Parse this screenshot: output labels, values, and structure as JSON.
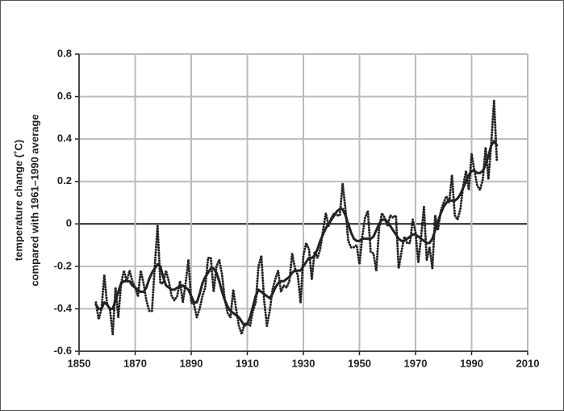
{
  "chart_data": {
    "type": "line",
    "ylabel": [
      "temperature change (˚C)",
      "compared with 1961–1990 average"
    ],
    "x": [
      1856,
      1857,
      1858,
      1859,
      1860,
      1861,
      1862,
      1863,
      1864,
      1865,
      1866,
      1867,
      1868,
      1869,
      1870,
      1871,
      1872,
      1873,
      1874,
      1875,
      1876,
      1877,
      1878,
      1879,
      1880,
      1881,
      1882,
      1883,
      1884,
      1885,
      1886,
      1887,
      1888,
      1889,
      1890,
      1891,
      1892,
      1893,
      1894,
      1895,
      1896,
      1897,
      1898,
      1899,
      1900,
      1901,
      1902,
      1903,
      1904,
      1905,
      1906,
      1907,
      1908,
      1909,
      1910,
      1911,
      1912,
      1913,
      1914,
      1915,
      1916,
      1917,
      1918,
      1919,
      1920,
      1921,
      1922,
      1923,
      1924,
      1925,
      1926,
      1927,
      1928,
      1929,
      1930,
      1931,
      1932,
      1933,
      1934,
      1935,
      1936,
      1937,
      1938,
      1939,
      1940,
      1941,
      1942,
      1943,
      1944,
      1945,
      1946,
      1947,
      1948,
      1949,
      1950,
      1951,
      1952,
      1953,
      1954,
      1955,
      1956,
      1957,
      1958,
      1959,
      1960,
      1961,
      1962,
      1963,
      1964,
      1965,
      1966,
      1967,
      1968,
      1969,
      1970,
      1971,
      1972,
      1973,
      1974,
      1975,
      1976,
      1977,
      1978,
      1979,
      1980,
      1981,
      1982,
      1983,
      1984,
      1985,
      1986,
      1987,
      1988,
      1989,
      1990,
      1991,
      1992,
      1993,
      1994,
      1995,
      1996,
      1997,
      1998,
      1999
    ],
    "series": [
      {
        "color": "#222222",
        "style": "dotted",
        "values": [
          -0.37,
          -0.45,
          -0.4,
          -0.24,
          -0.38,
          -0.4,
          -0.52,
          -0.3,
          -0.44,
          -0.28,
          -0.22,
          -0.27,
          -0.22,
          -0.27,
          -0.3,
          -0.34,
          -0.22,
          -0.28,
          -0.36,
          -0.41,
          -0.41,
          -0.2,
          -0.01,
          -0.28,
          -0.28,
          -0.22,
          -0.27,
          -0.34,
          -0.36,
          -0.34,
          -0.27,
          -0.37,
          -0.28,
          -0.17,
          -0.37,
          -0.38,
          -0.44,
          -0.4,
          -0.34,
          -0.3,
          -0.16,
          -0.16,
          -0.32,
          -0.2,
          -0.17,
          -0.24,
          -0.36,
          -0.42,
          -0.44,
          -0.31,
          -0.4,
          -0.48,
          -0.52,
          -0.47,
          -0.47,
          -0.48,
          -0.41,
          -0.37,
          -0.2,
          -0.15,
          -0.36,
          -0.48,
          -0.41,
          -0.31,
          -0.26,
          -0.22,
          -0.32,
          -0.29,
          -0.3,
          -0.27,
          -0.14,
          -0.21,
          -0.24,
          -0.37,
          -0.15,
          -0.09,
          -0.12,
          -0.26,
          -0.13,
          -0.16,
          -0.12,
          -0.03,
          0.05,
          -0.01,
          0.03,
          0.05,
          0.04,
          0.04,
          0.19,
          0.07,
          -0.08,
          -0.11,
          -0.11,
          -0.1,
          -0.19,
          -0.06,
          0.03,
          0.06,
          -0.13,
          -0.14,
          -0.22,
          -0.02,
          0.05,
          0.03,
          -0.01,
          0.04,
          0.03,
          0.04,
          -0.21,
          -0.13,
          -0.06,
          -0.09,
          -0.09,
          0.02,
          -0.04,
          -0.18,
          -0.06,
          0.08,
          -0.17,
          -0.11,
          -0.21,
          0.04,
          -0.03,
          0.06,
          0.1,
          0.13,
          0.1,
          0.23,
          0.04,
          0.02,
          0.07,
          0.18,
          0.25,
          0.16,
          0.33,
          0.25,
          0.18,
          0.16,
          0.21,
          0.36,
          0.21,
          0.38,
          0.58,
          0.3
        ]
      },
      {
        "color": "#222222",
        "style": "solid",
        "values": [
          -0.38,
          -0.4,
          -0.4,
          -0.37,
          -0.38,
          -0.4,
          -0.4,
          -0.36,
          -0.32,
          -0.28,
          -0.27,
          -0.27,
          -0.27,
          -0.29,
          -0.3,
          -0.31,
          -0.32,
          -0.32,
          -0.3,
          -0.26,
          -0.23,
          -0.21,
          -0.19,
          -0.2,
          -0.25,
          -0.29,
          -0.3,
          -0.31,
          -0.31,
          -0.3,
          -0.3,
          -0.29,
          -0.3,
          -0.31,
          -0.34,
          -0.37,
          -0.37,
          -0.33,
          -0.28,
          -0.25,
          -0.23,
          -0.21,
          -0.21,
          -0.23,
          -0.27,
          -0.32,
          -0.36,
          -0.39,
          -0.41,
          -0.42,
          -0.43,
          -0.44,
          -0.46,
          -0.48,
          -0.47,
          -0.44,
          -0.39,
          -0.34,
          -0.31,
          -0.32,
          -0.33,
          -0.34,
          -0.35,
          -0.33,
          -0.3,
          -0.28,
          -0.27,
          -0.27,
          -0.26,
          -0.25,
          -0.23,
          -0.22,
          -0.22,
          -0.22,
          -0.2,
          -0.18,
          -0.16,
          -0.16,
          -0.15,
          -0.12,
          -0.08,
          -0.05,
          -0.02,
          0.0,
          0.02,
          0.04,
          0.06,
          0.07,
          0.07,
          0.04,
          0.0,
          -0.04,
          -0.07,
          -0.08,
          -0.08,
          -0.07,
          -0.07,
          -0.07,
          -0.07,
          -0.06,
          -0.03,
          0.0,
          0.02,
          0.02,
          0.01,
          -0.01,
          -0.03,
          -0.05,
          -0.07,
          -0.08,
          -0.08,
          -0.07,
          -0.06,
          -0.05,
          -0.05,
          -0.06,
          -0.07,
          -0.08,
          -0.09,
          -0.09,
          -0.07,
          -0.03,
          0.01,
          0.05,
          0.08,
          0.1,
          0.11,
          0.11,
          0.11,
          0.12,
          0.14,
          0.17,
          0.2,
          0.23,
          0.25,
          0.25,
          0.24,
          0.24,
          0.25,
          0.28,
          0.32,
          0.37,
          0.39,
          0.37
        ]
      }
    ],
    "xlim": [
      1850,
      2010
    ],
    "xticks": [
      1850,
      1870,
      1890,
      1910,
      1930,
      1950,
      1970,
      1990,
      2010
    ],
    "ylim": [
      -0.6,
      0.8
    ],
    "yticks": [
      -0.6,
      -0.4,
      -0.2,
      0,
      0.2,
      0.4,
      0.6,
      0.8
    ],
    "grid": true,
    "zero_line": true
  }
}
